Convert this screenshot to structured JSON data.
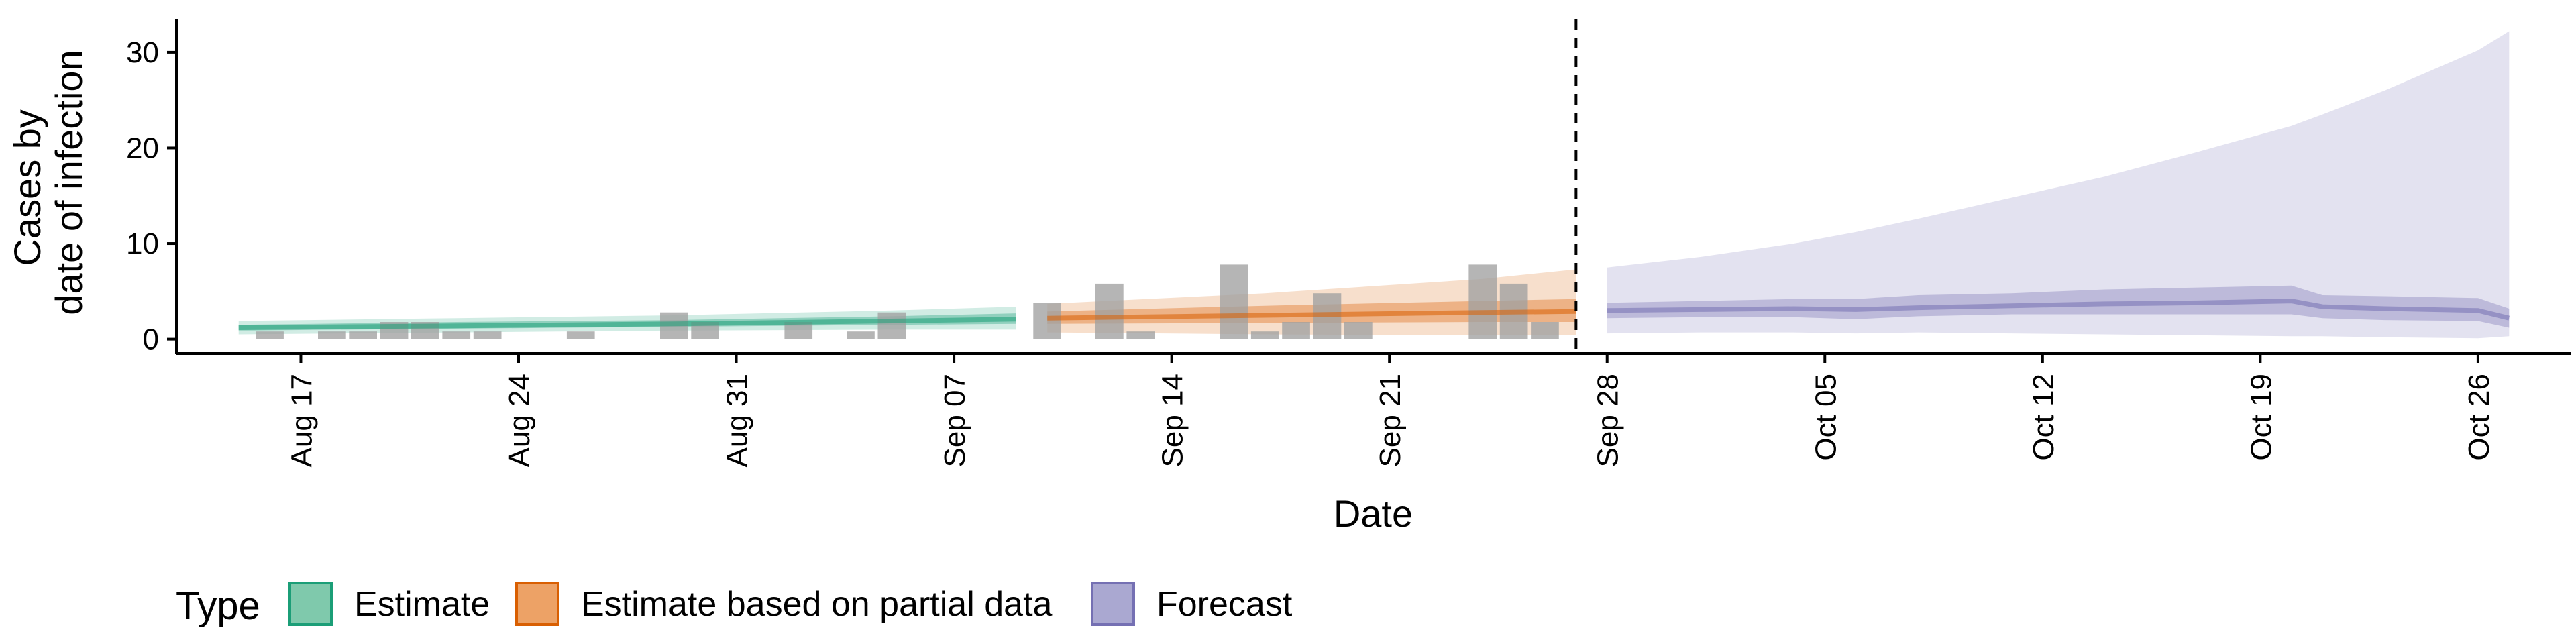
{
  "chart_data": {
    "type": "area",
    "xlabel": "Date",
    "ylabel": [
      "Cases by",
      "date of infection"
    ],
    "ylim": [
      -1.5,
      33.5
    ],
    "yticks": [
      0,
      10,
      20,
      30
    ],
    "xlim": [
      "2020-08-13",
      "2020-10-29"
    ],
    "xticks": [
      {
        "date": "2020-08-17",
        "label": "Aug 17"
      },
      {
        "date": "2020-08-24",
        "label": "Aug 24"
      },
      {
        "date": "2020-08-31",
        "label": "Aug 31"
      },
      {
        "date": "2020-09-07",
        "label": "Sep 07"
      },
      {
        "date": "2020-09-14",
        "label": "Sep 14"
      },
      {
        "date": "2020-09-21",
        "label": "Sep 21"
      },
      {
        "date": "2020-09-28",
        "label": "Sep 28"
      },
      {
        "date": "2020-10-05",
        "label": "Oct 05"
      },
      {
        "date": "2020-10-12",
        "label": "Oct 12"
      },
      {
        "date": "2020-10-19",
        "label": "Oct 19"
      },
      {
        "date": "2020-10-26",
        "label": "Oct 26"
      }
    ],
    "vline": "2020-09-27",
    "grid": false,
    "legend": {
      "title": "Type",
      "position": "bottom",
      "entries": [
        {
          "label": "Estimate",
          "fill": "#7fc9ac",
          "stroke": "#1b9e77"
        },
        {
          "label": "Estimate based on partial data",
          "fill": "#eda266",
          "stroke": "#d95f02"
        },
        {
          "label": "Forecast",
          "fill": "#aaa8d1",
          "stroke": "#7570b3"
        }
      ]
    },
    "bars": {
      "color": "#a0a0a0",
      "data": [
        [
          "2020-08-16",
          0.8
        ],
        [
          "2020-08-18",
          0.8
        ],
        [
          "2020-08-19",
          0.8
        ],
        [
          "2020-08-20",
          1.8
        ],
        [
          "2020-08-21",
          1.8
        ],
        [
          "2020-08-22",
          0.8
        ],
        [
          "2020-08-23",
          0.8
        ],
        [
          "2020-08-26",
          0.8
        ],
        [
          "2020-08-29",
          2.8
        ],
        [
          "2020-08-30",
          1.8
        ],
        [
          "2020-09-02",
          1.8
        ],
        [
          "2020-09-04",
          0.8
        ],
        [
          "2020-09-05",
          2.8
        ],
        [
          "2020-09-10",
          3.8
        ],
        [
          "2020-09-12",
          5.8
        ],
        [
          "2020-09-13",
          0.8
        ],
        [
          "2020-09-16",
          7.8
        ],
        [
          "2020-09-17",
          0.8
        ],
        [
          "2020-09-18",
          1.8
        ],
        [
          "2020-09-19",
          4.8
        ],
        [
          "2020-09-20",
          1.8
        ],
        [
          "2020-09-24",
          7.8
        ],
        [
          "2020-09-25",
          5.8
        ],
        [
          "2020-09-26",
          1.8
        ]
      ]
    },
    "series": [
      {
        "name": "Estimate",
        "color": "#1b9e77",
        "x": [
          "2020-08-15",
          "2020-08-22",
          "2020-08-29",
          "2020-09-05",
          "2020-09-09"
        ],
        "median": [
          1.2,
          1.4,
          1.6,
          1.9,
          2.1
        ],
        "inner": [
          [
            0.9,
            1.5
          ],
          [
            1.1,
            1.8
          ],
          [
            1.3,
            2.0
          ],
          [
            1.5,
            2.4
          ],
          [
            1.6,
            2.7
          ]
        ],
        "outer": [
          [
            0.5,
            1.9
          ],
          [
            0.7,
            2.2
          ],
          [
            0.9,
            2.5
          ],
          [
            1.0,
            3.0
          ],
          [
            1.0,
            3.4
          ]
        ]
      },
      {
        "name": "Estimate based on partial data",
        "color": "#d95f02",
        "x": [
          "2020-09-10",
          "2020-09-17",
          "2020-09-24",
          "2020-09-27"
        ],
        "median": [
          2.2,
          2.5,
          2.8,
          2.9
        ],
        "inner": [
          [
            1.6,
            2.9
          ],
          [
            1.7,
            3.5
          ],
          [
            1.8,
            4.0
          ],
          [
            1.8,
            4.2
          ]
        ],
        "outer": [
          [
            0.7,
            3.7
          ],
          [
            0.5,
            4.8
          ],
          [
            0.4,
            6.3
          ],
          [
            0.4,
            7.3
          ]
        ]
      },
      {
        "name": "Forecast",
        "color": "#7570b3",
        "x": [
          "2020-09-28",
          "2020-10-01",
          "2020-10-04",
          "2020-10-06",
          "2020-10-08",
          "2020-10-11",
          "2020-10-14",
          "2020-10-17",
          "2020-10-20",
          "2020-10-21",
          "2020-10-23",
          "2020-10-26",
          "2020-10-27"
        ],
        "median": [
          3.0,
          3.1,
          3.2,
          3.1,
          3.3,
          3.5,
          3.7,
          3.8,
          4.0,
          3.4,
          3.2,
          3.0,
          2.2
        ],
        "inner": [
          [
            2.2,
            3.8
          ],
          [
            2.3,
            4.0
          ],
          [
            2.3,
            4.2
          ],
          [
            2.1,
            4.2
          ],
          [
            2.4,
            4.6
          ],
          [
            2.6,
            4.8
          ],
          [
            2.6,
            5.2
          ],
          [
            2.6,
            5.4
          ],
          [
            2.6,
            5.6
          ],
          [
            2.2,
            4.6
          ],
          [
            2.0,
            4.5
          ],
          [
            1.9,
            4.3
          ],
          [
            1.2,
            3.2
          ]
        ],
        "outer": [
          [
            0.6,
            7.5
          ],
          [
            0.7,
            8.6
          ],
          [
            0.7,
            10.0
          ],
          [
            0.6,
            11.2
          ],
          [
            0.7,
            12.6
          ],
          [
            0.6,
            14.8
          ],
          [
            0.5,
            17.0
          ],
          [
            0.4,
            19.6
          ],
          [
            0.3,
            22.3
          ],
          [
            0.3,
            23.5
          ],
          [
            0.2,
            26.0
          ],
          [
            0.1,
            30.2
          ],
          [
            0.3,
            32.2
          ]
        ]
      }
    ]
  }
}
